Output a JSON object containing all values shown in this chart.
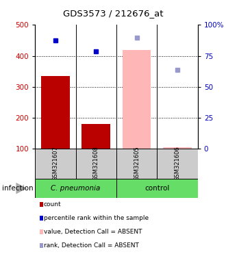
{
  "title": "GDS3573 / 212676_at",
  "samples": [
    "GSM321607",
    "GSM321608",
    "GSM321605",
    "GSM321606"
  ],
  "bar_values": [
    335,
    180,
    420,
    105
  ],
  "bar_colors": [
    "#bb0000",
    "#bb0000",
    "#ffb6b6",
    "#ffb6b6"
  ],
  "dot_values": [
    450,
    415,
    460,
    355
  ],
  "dot_colors": [
    "#0000cc",
    "#0000cc",
    "#9999cc",
    "#9999cc"
  ],
  "ylim": [
    100,
    500
  ],
  "y2lim": [
    0,
    100
  ],
  "yticks": [
    100,
    200,
    300,
    400,
    500
  ],
  "y2ticks": [
    0,
    25,
    50,
    75,
    100
  ],
  "ylabel_color": "#cc0000",
  "y2label_color": "#0000bb",
  "group_info": [
    {
      "name": "C. pneumonia",
      "start": 0,
      "end": 2,
      "italic": true
    },
    {
      "name": "control",
      "start": 2,
      "end": 4,
      "italic": false
    }
  ],
  "legend_items": [
    {
      "label": "count",
      "color": "#bb0000",
      "type": "rect"
    },
    {
      "label": "percentile rank within the sample",
      "color": "#0000cc",
      "type": "rect"
    },
    {
      "label": "value, Detection Call = ABSENT",
      "color": "#ffb6b6",
      "type": "rect"
    },
    {
      "label": "rank, Detection Call = ABSENT",
      "color": "#9999cc",
      "type": "rect"
    }
  ],
  "infection_label": "infection",
  "grid_lines": [
    200,
    300,
    400
  ]
}
